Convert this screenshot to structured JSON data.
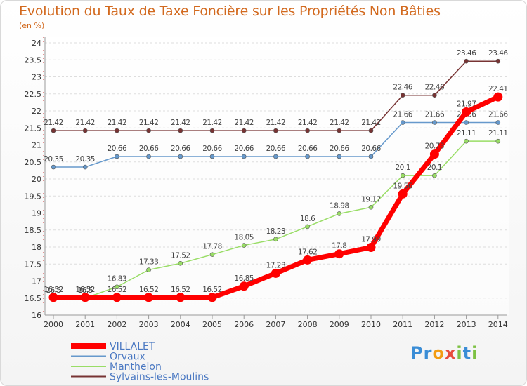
{
  "title": "Evolution du Taux de Taxe Foncière sur les Propriétés Non Bâties",
  "unit": "(en %)",
  "logo": {
    "letters": [
      "P",
      "r",
      "o",
      "x",
      "i",
      "t",
      "i"
    ],
    "colors": [
      "#3a8dd6",
      "#3a8dd6",
      "#f39c12",
      "#e74c3c",
      "#7cc143",
      "#3a8dd6",
      "#7cc143"
    ]
  },
  "chart_data": {
    "type": "line",
    "title": "Evolution du Taux de Taxe Foncière sur les Propriétés Non Bâties",
    "ylabel": "(en %)",
    "xlabel": "",
    "categories": [
      "2000",
      "2001",
      "2002",
      "2003",
      "2004",
      "2005",
      "2006",
      "2007",
      "2008",
      "2009",
      "2010",
      "2011",
      "2012",
      "2013",
      "2014"
    ],
    "ylim": [
      16,
      24
    ],
    "yticks": [
      "16",
      "16.5",
      "17",
      "17.5",
      "18",
      "18.5",
      "19",
      "19.5",
      "20",
      "20.5",
      "21",
      "21.5",
      "22",
      "22.5",
      "23",
      "23.5",
      "24"
    ],
    "grid": "horizontal",
    "series": [
      {
        "name": "VILLALET",
        "color": "#ff0000",
        "values": [
          16.52,
          16.52,
          16.52,
          16.52,
          16.52,
          16.52,
          16.85,
          17.23,
          17.62,
          17.8,
          17.99,
          19.56,
          20.73,
          21.97,
          22.41
        ],
        "labels": [
          "16.52",
          "16.52",
          "16.52",
          "16.52",
          "16.52",
          "16.52",
          "16.85",
          "17.23",
          "17.62",
          "17.8",
          "17.99",
          "19.56",
          "20.73",
          "21.97",
          "22.41"
        ]
      },
      {
        "name": "Orvaux",
        "color": "#6699cc",
        "values": [
          20.35,
          20.35,
          20.66,
          20.66,
          20.66,
          20.66,
          20.66,
          20.66,
          20.66,
          20.66,
          20.66,
          21.66,
          21.66,
          21.66,
          21.66
        ],
        "labels": [
          "20.35",
          "20.35",
          "20.66",
          "20.66",
          "20.66",
          "20.66",
          "20.66",
          "20.66",
          "20.66",
          "20.66",
          "20.66",
          "21.66",
          "21.66",
          "21.66",
          "21.66"
        ]
      },
      {
        "name": "Manthelon",
        "color": "#99dd66",
        "values": [
          16.5,
          16.5,
          16.83,
          17.33,
          17.52,
          17.78,
          18.05,
          18.23,
          18.6,
          18.98,
          19.17,
          20.1,
          20.1,
          21.11,
          21.11
        ],
        "labels": [
          "16.5",
          "16.5",
          "16.83",
          "17.33",
          "17.52",
          "17.78",
          "18.05",
          "18.23",
          "18.6",
          "18.98",
          "19.17",
          "20.1",
          "20.1",
          "21.11",
          "21.11"
        ]
      },
      {
        "name": "Sylvains-les-Moulins",
        "color": "#773333",
        "values": [
          21.42,
          21.42,
          21.42,
          21.42,
          21.42,
          21.42,
          21.42,
          21.42,
          21.42,
          21.42,
          21.42,
          22.46,
          22.46,
          23.46,
          23.46
        ],
        "labels": [
          "21.42",
          "21.42",
          "21.42",
          "21.42",
          "21.42",
          "21.42",
          "21.42",
          "21.42",
          "21.42",
          "21.42",
          "21.42",
          "22.46",
          "22.46",
          "23.46",
          "23.46"
        ]
      }
    ],
    "legend": "bottom-left"
  }
}
